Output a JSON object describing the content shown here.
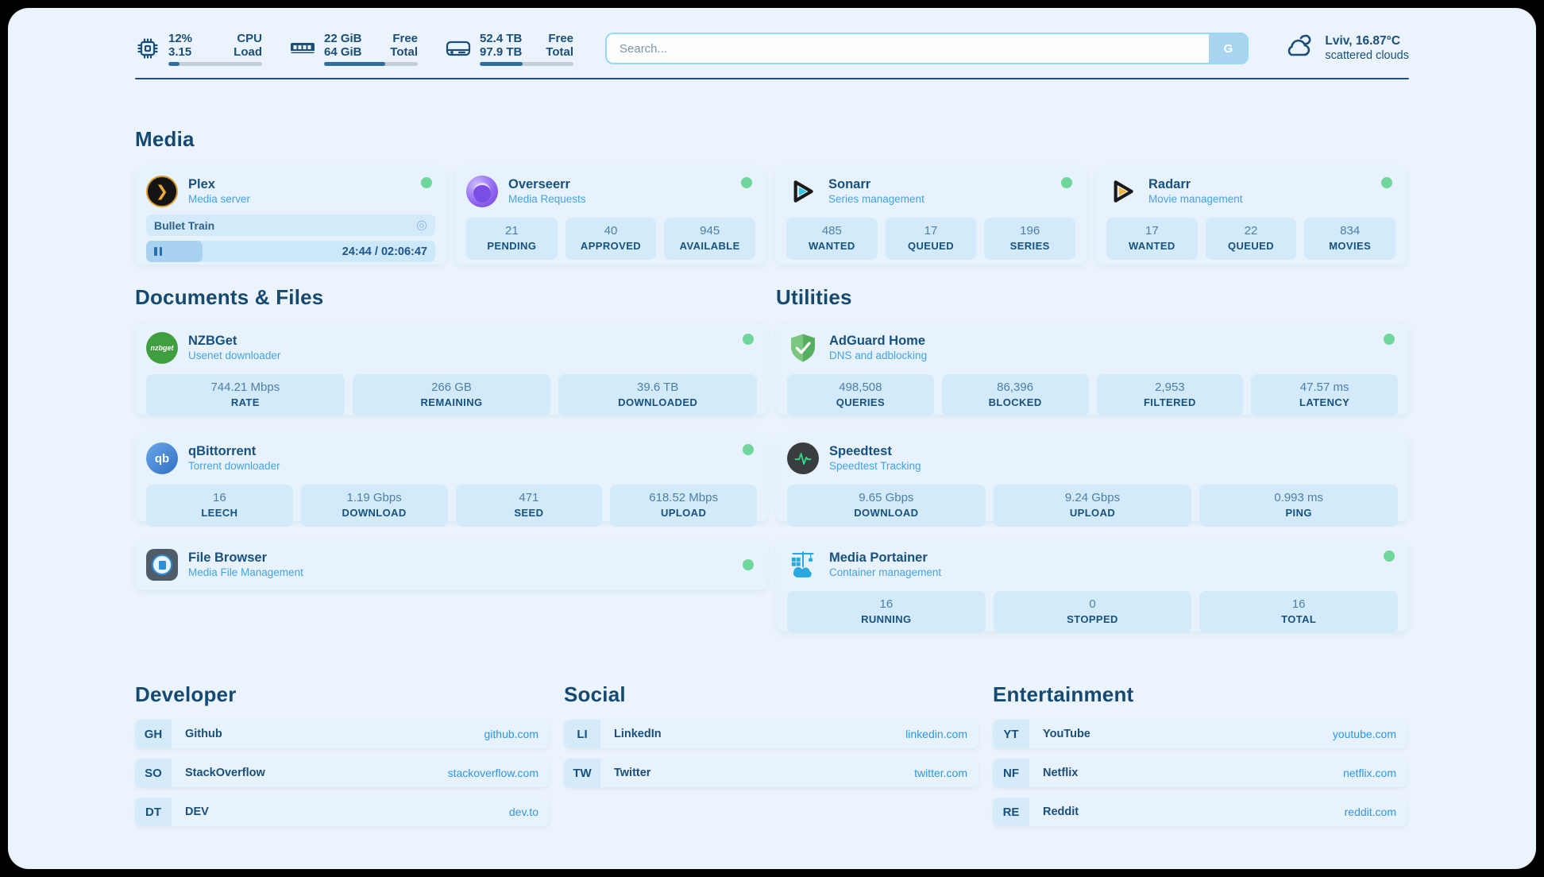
{
  "topbar": {
    "cpu": {
      "value1": "12%",
      "value2": "3.15",
      "label1": "CPU",
      "label2": "Load",
      "percent": 12
    },
    "ram": {
      "value1": "22 GiB",
      "value2": "64 GiB",
      "label1": "Free",
      "label2": "Total",
      "percent": 65
    },
    "disk": {
      "value1": "52.4 TB",
      "value2": "97.9 TB",
      "label1": "Free",
      "label2": "Total",
      "percent": 46
    },
    "search": {
      "placeholder": "Search...",
      "button_label": "G"
    },
    "weather": {
      "location": "Lviv, 16.87°C",
      "condition": "scattered clouds"
    }
  },
  "sections": {
    "media": "Media",
    "documents": "Documents & Files",
    "utilities": "Utilities",
    "developer": "Developer",
    "social": "Social",
    "entertainment": "Entertainment"
  },
  "apps": {
    "plex": {
      "name": "Plex",
      "subtitle": "Media server",
      "now_playing": "Bullet Train",
      "time": "24:44 / 02:06:47",
      "progress_percent": 19.5
    },
    "overseerr": {
      "name": "Overseerr",
      "subtitle": "Media Requests",
      "stats": [
        {
          "value": "21",
          "label": "PENDING"
        },
        {
          "value": "40",
          "label": "APPROVED"
        },
        {
          "value": "945",
          "label": "AVAILABLE"
        }
      ]
    },
    "sonarr": {
      "name": "Sonarr",
      "subtitle": "Series management",
      "stats": [
        {
          "value": "485",
          "label": "WANTED"
        },
        {
          "value": "17",
          "label": "QUEUED"
        },
        {
          "value": "196",
          "label": "SERIES"
        }
      ]
    },
    "radarr": {
      "name": "Radarr",
      "subtitle": "Movie management",
      "stats": [
        {
          "value": "17",
          "label": "WANTED"
        },
        {
          "value": "22",
          "label": "QUEUED"
        },
        {
          "value": "834",
          "label": "MOVIES"
        }
      ]
    },
    "nzbget": {
      "name": "NZBGet",
      "subtitle": "Usenet downloader",
      "icon_text": "nzbget",
      "stats": [
        {
          "value": "744.21 Mbps",
          "label": "RATE"
        },
        {
          "value": "266 GB",
          "label": "REMAINING"
        },
        {
          "value": "39.6 TB",
          "label": "DOWNLOADED"
        }
      ]
    },
    "adguard": {
      "name": "AdGuard Home",
      "subtitle": "DNS and adblocking",
      "stats": [
        {
          "value": "498,508",
          "label": "QUERIES"
        },
        {
          "value": "86,396",
          "label": "BLOCKED"
        },
        {
          "value": "2,953",
          "label": "FILTERED"
        },
        {
          "value": "47.57 ms",
          "label": "LATENCY"
        }
      ]
    },
    "qbittorrent": {
      "name": "qBittorrent",
      "subtitle": "Torrent downloader",
      "icon_text": "qb",
      "stats": [
        {
          "value": "16",
          "label": "LEECH"
        },
        {
          "value": "1.19 Gbps",
          "label": "DOWNLOAD"
        },
        {
          "value": "471",
          "label": "SEED"
        },
        {
          "value": "618.52 Mbps",
          "label": "UPLOAD"
        }
      ]
    },
    "speedtest": {
      "name": "Speedtest",
      "subtitle": "Speedtest Tracking",
      "stats": [
        {
          "value": "9.65 Gbps",
          "label": "DOWNLOAD"
        },
        {
          "value": "9.24 Gbps",
          "label": "UPLOAD"
        },
        {
          "value": "0.993 ms",
          "label": "PING"
        }
      ]
    },
    "filebrowser": {
      "name": "File Browser",
      "subtitle": "Media File Management"
    },
    "portainer": {
      "name": "Media Portainer",
      "subtitle": "Container management",
      "stats": [
        {
          "value": "16",
          "label": "RUNNING"
        },
        {
          "value": "0",
          "label": "STOPPED"
        },
        {
          "value": "16",
          "label": "TOTAL"
        }
      ]
    }
  },
  "bookmarks": {
    "developer": [
      {
        "abbr": "GH",
        "name": "Github",
        "url": "github.com"
      },
      {
        "abbr": "SO",
        "name": "StackOverflow",
        "url": "stackoverflow.com"
      },
      {
        "abbr": "DT",
        "name": "DEV",
        "url": "dev.to"
      }
    ],
    "social": [
      {
        "abbr": "LI",
        "name": "LinkedIn",
        "url": "linkedin.com"
      },
      {
        "abbr": "TW",
        "name": "Twitter",
        "url": "twitter.com"
      }
    ],
    "entertainment": [
      {
        "abbr": "YT",
        "name": "YouTube",
        "url": "youtube.com"
      },
      {
        "abbr": "NF",
        "name": "Netflix",
        "url": "netflix.com"
      },
      {
        "abbr": "RE",
        "name": "Reddit",
        "url": "reddit.com"
      }
    ]
  },
  "colors": {
    "page_bg": "#ebf4fc",
    "card_bg": "#e7f2fc",
    "tile_bg": "#d2eafa",
    "navy": "#17517e",
    "subtitle_blue": "#44a3e4",
    "link_blue": "#2f96e2",
    "status_green": "#6fd79c",
    "accent_bar": "#2e6f9e"
  }
}
